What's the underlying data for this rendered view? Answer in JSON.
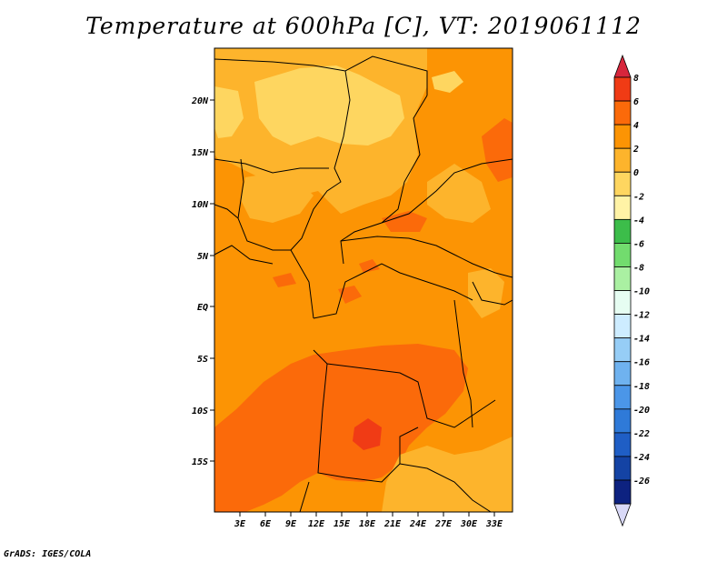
{
  "title": "Temperature at 600hPa [C], VT: 2019061112",
  "credit": "GrADS: IGES/COLA",
  "map": {
    "lat_labels": [
      "20N",
      "15N",
      "10N",
      "5N",
      "EQ",
      "5S",
      "10S",
      "15S"
    ],
    "lon_labels": [
      "3E",
      "6E",
      "9E",
      "12E",
      "15E",
      "18E",
      "21E",
      "24E",
      "27E",
      "30E",
      "33E"
    ]
  },
  "colorbar": {
    "labels": [
      "8",
      "6",
      "4",
      "2",
      "0",
      "-2",
      "-4",
      "-6",
      "-8",
      "-10",
      "-12",
      "-14",
      "-16",
      "-18",
      "-20",
      "-22",
      "-24",
      "-26"
    ],
    "colors": [
      "#d7263c",
      "#f03b15",
      "#fb6a0a",
      "#fc9404",
      "#fdb42c",
      "#fed660",
      "#fff3a6",
      "#3cbd4a",
      "#72dc6e",
      "#aaf0a2",
      "#e6fdf2",
      "#cdecff",
      "#96cdf6",
      "#6fb2ef",
      "#4b96e8",
      "#2f7ad8",
      "#1f5ec5",
      "#1443a4",
      "#0d2280",
      "#d9d9f7"
    ]
  }
}
